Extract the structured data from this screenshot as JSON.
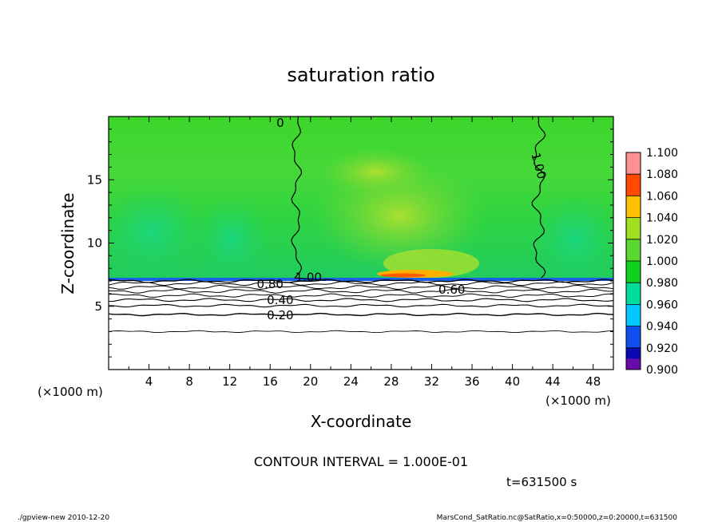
{
  "chart_data": {
    "type": "heatmap",
    "title": "saturation ratio",
    "xlabel": "X-coordinate",
    "ylabel": "Z-coordinate",
    "x_unit_left": "(×1000 m)",
    "x_unit_right": "(×1000 m)",
    "xlim": [
      0,
      50
    ],
    "ylim": [
      0,
      20
    ],
    "x_ticks": [
      "4",
      "8",
      "12",
      "16",
      "20",
      "24",
      "28",
      "32",
      "36",
      "40",
      "44",
      "48"
    ],
    "x_tick_values": [
      4,
      8,
      12,
      16,
      20,
      24,
      28,
      32,
      36,
      40,
      44,
      48
    ],
    "y_ticks": [
      "5",
      "10",
      "15"
    ],
    "y_tick_values": [
      5,
      10,
      15
    ],
    "colorbar": {
      "range": [
        0.9,
        1.1
      ],
      "labels": [
        "0.900",
        "0.920",
        "0.940",
        "0.960",
        "0.980",
        "1.000",
        "1.020",
        "1.040",
        "1.060",
        "1.080",
        "1.100"
      ],
      "colors": [
        "#6a0aa8",
        "#0a0ab4",
        "#1050f0",
        "#00c8ff",
        "#00dc9a",
        "#10d020",
        "#5ad830",
        "#a0e020",
        "#ffc000",
        "#ff4a00",
        "#ff9090"
      ]
    },
    "contour_labels": [
      {
        "text": "1.00",
        "x": 19.8,
        "z": 7.3
      },
      {
        "text": "1.00",
        "x": 42.6,
        "z": 16.1
      },
      {
        "text": "0.80",
        "x": 16.0,
        "z": 6.75
      },
      {
        "text": "0.60",
        "x": 34.0,
        "z": 6.3
      },
      {
        "text": "0.40",
        "x": 17.0,
        "z": 5.5
      },
      {
        "text": "0.20",
        "x": 17.0,
        "z": 4.3
      },
      {
        "text": "0",
        "x": 17.0,
        "z": 19.5
      }
    ],
    "contour_interval_text": "CONTOUR INTERVAL = 1.000E-01",
    "time_text": "t=631500  s"
  },
  "footer": {
    "left": "./gpview-new   2010-12-20",
    "right": "MarsCond_SatRatio.nc@SatRatio,x=0:50000,z=0:20000,t=631500"
  }
}
